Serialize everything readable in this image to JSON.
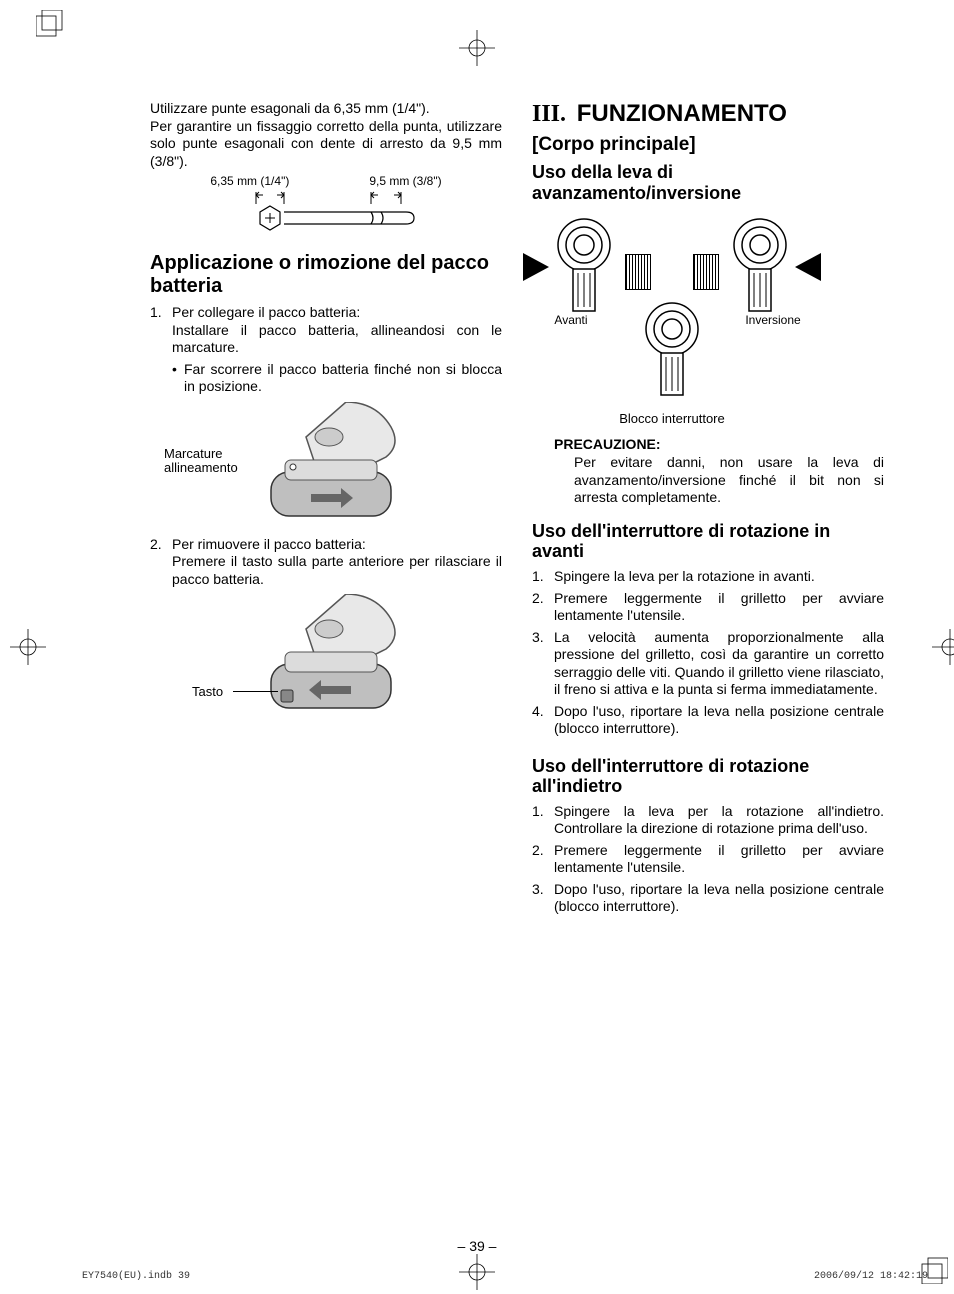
{
  "left": {
    "intro1": "Utilizzare punte esagonali da 6,35 mm (1/4\").",
    "intro2": "Per garantire un fissaggio corretto della punta, utilizzare solo punte esagonali con dente di arresto da 9,5 mm (3/8\").",
    "dim_left_label": "6,35 mm (1/4\")",
    "dim_right_label": "9,5 mm (3/8\")",
    "h2": "Applicazione o rimozione del pacco batteria",
    "step1_lead": "Per collegare il pacco batteria:",
    "step1_body": "Installare il pacco batteria, allineandosi con le marcature.",
    "step1_bullet": "Far scorrere il pacco batteria finché non si blocca in posizione.",
    "marcature_label": "Marcature\nallineamento",
    "step2_lead": "Per rimuovere il pacco batteria:",
    "step2_body": "Premere il tasto sulla parte anteriore per rilasciare il pacco batteria.",
    "tasto_label": "Tasto"
  },
  "right": {
    "section_num": "III.",
    "section_title": "FUNZIONAMENTO",
    "sub1": "[Corpo principale]",
    "h3a": "Uso della leva di avanzamento/inversione",
    "lever_fwd": "Avanti",
    "lever_rev": "Inversione",
    "lever_lock": "Blocco interruttore",
    "caution_title": "PRECAUZIONE:",
    "caution_body": "Per evitare danni, non usare la leva di avanzamento/inversione finché il bit non si arresta completamente.",
    "h3b": "Uso dell'interruttore di rota­zione in avanti",
    "fwd_steps": [
      "Spingere la leva per la rotazione in avanti.",
      "Premere leggermente il grilletto per avvi­are lentamente l'utensile.",
      "La velocità aumenta proporzionalmente alla pressione del grilletto, così da garan­tire un corretto serraggio delle viti. Quan­do il grilletto viene rilasciato, il freno si atti­va e la punta si ferma immediatamente.",
      "Dopo l'uso, riportare la leva nella posi­zione centrale (blocco interruttore)."
    ],
    "h3c": "Uso dell'interruttore di rota­zione all'indietro",
    "rev_steps": [
      "Spingere la leva per la rotazione all'indietro. Controllare la direzione di rotazione prima dell'uso.",
      "Premere leggermente il grilletto per avviare lentamente l'utensile.",
      "Dopo l'uso, riportare la leva nella posi­zione centrale (blocco interruttore)."
    ]
  },
  "page_number": "– 39 –",
  "footer_left": "EY7540(EU).indb   39",
  "footer_right": "2006/09/12   18:42:19",
  "colors": {
    "text": "#000000",
    "background": "#ffffff",
    "footer": "#333333"
  },
  "typography": {
    "body_pt": 14,
    "h1_pt": 24,
    "h2_pt": 20,
    "h3_pt": 18,
    "small_pt": 12
  }
}
